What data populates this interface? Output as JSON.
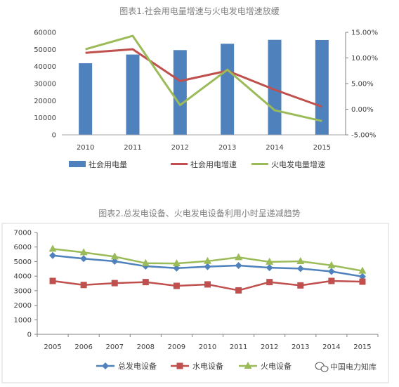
{
  "chart_data": [
    {
      "type": "bar",
      "title": "图表1.社会用电量增速与火电发电增速放缓",
      "categories": [
        "2010",
        "2011",
        "2012",
        "2013",
        "2014",
        "2015"
      ],
      "ylim": [
        0,
        60000
      ],
      "y_ticks": [
        "0",
        "10000",
        "20000",
        "30000",
        "40000",
        "50000",
        "60000"
      ],
      "y2lim": [
        -5,
        15
      ],
      "y2_ticks": [
        "-5.00%",
        "0.00%",
        "5.00%",
        "10.00%",
        "15.00%"
      ],
      "series": [
        {
          "name": "社会用电量",
          "kind": "bar",
          "axis": "left",
          "color": "#4f81bd",
          "values": [
            41900,
            47000,
            49600,
            53300,
            55600,
            55500
          ]
        },
        {
          "name": "社会用电增速",
          "kind": "line",
          "axis": "right",
          "color": "#c0504d",
          "values": [
            11.0,
            11.7,
            5.5,
            7.5,
            3.8,
            0.5
          ]
        },
        {
          "name": "火电发电量增速",
          "kind": "line",
          "axis": "right",
          "color": "#9bbb59",
          "values": [
            11.7,
            14.3,
            0.8,
            7.7,
            -0.2,
            -2.3
          ]
        }
      ],
      "legend_position": "bottom"
    },
    {
      "type": "line",
      "title": "图表2.总发电设备、火电发电设备利用小时呈递减趋势",
      "categories": [
        "2005",
        "2006",
        "2007",
        "2008",
        "2009",
        "2010",
        "2011",
        "2012",
        "2013",
        "2014",
        "2015"
      ],
      "ylim": [
        0,
        7000
      ],
      "y_ticks": [
        "0",
        "1000",
        "2000",
        "3000",
        "4000",
        "5000",
        "6000",
        "7000"
      ],
      "series": [
        {
          "name": "总发电设备",
          "color": "#4f81bd",
          "marker": "diamond",
          "values": [
            5420,
            5200,
            5020,
            4680,
            4550,
            4650,
            4730,
            4580,
            4520,
            4320,
            3970
          ]
        },
        {
          "name": "水电设备",
          "color": "#c0504d",
          "marker": "square",
          "values": [
            3670,
            3390,
            3520,
            3590,
            3330,
            3430,
            3020,
            3590,
            3360,
            3670,
            3620
          ]
        },
        {
          "name": "火电设备",
          "color": "#9bbb59",
          "marker": "triangle",
          "values": [
            5870,
            5630,
            5340,
            4890,
            4870,
            5030,
            5290,
            4980,
            5020,
            4740,
            4360
          ]
        }
      ],
      "legend_position": "bottom"
    }
  ],
  "watermark": {
    "text": "中国电力知库",
    "icon": "wechat-icon"
  }
}
